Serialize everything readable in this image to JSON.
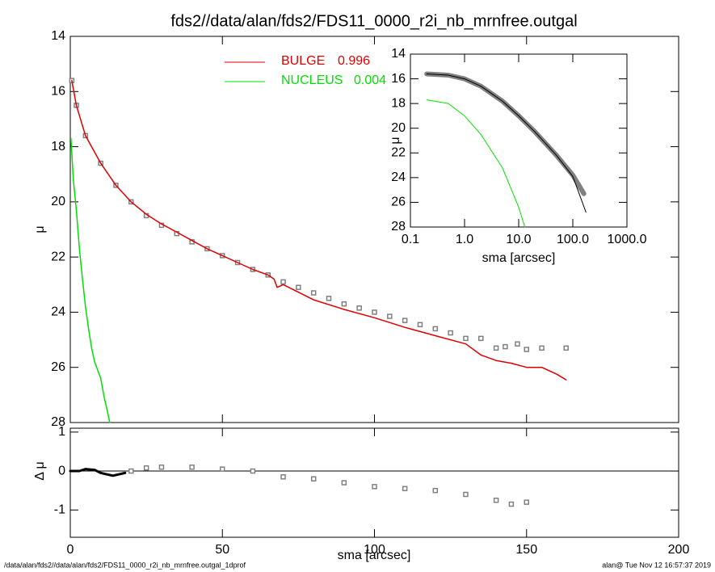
{
  "chart_data": [
    {
      "type": "line",
      "title": "fds2//data/alan/fds2/FDS11_0000_r2i_nb_mrnfree.outgal",
      "ylabel": "μ",
      "xlim": [
        0,
        200
      ],
      "ylim": [
        28,
        14
      ],
      "yticks": [
        14,
        16,
        18,
        20,
        22,
        24,
        26,
        28
      ],
      "series": [
        {
          "color": "#808080",
          "marker": "square",
          "x": [
            0.5,
            2,
            5,
            10,
            15,
            20,
            25,
            30,
            35,
            40,
            45,
            50,
            55,
            60,
            65,
            70,
            75,
            80,
            85,
            90,
            95,
            100,
            105,
            110,
            115,
            120,
            125,
            130,
            135,
            140,
            143,
            147,
            150,
            155,
            163
          ],
          "values": [
            15.6,
            16.5,
            17.6,
            18.6,
            19.4,
            20.0,
            20.5,
            20.85,
            21.15,
            21.45,
            21.7,
            21.95,
            22.2,
            22.45,
            22.65,
            22.9,
            23.1,
            23.3,
            23.5,
            23.7,
            23.85,
            24.0,
            24.15,
            24.3,
            24.45,
            24.6,
            24.75,
            24.95,
            24.95,
            25.3,
            25.25,
            25.15,
            25.35,
            25.3,
            25.3
          ]
        },
        {
          "name": "BULGE",
          "fraction": 0.996,
          "color": "#e00000",
          "x": [
            0.5,
            2,
            5,
            10,
            15,
            20,
            25,
            30,
            35,
            40,
            45,
            50,
            55,
            60,
            65,
            67,
            68,
            70,
            80,
            90,
            100,
            110,
            120,
            130,
            135,
            140,
            145,
            150,
            155,
            160,
            163
          ],
          "values": [
            15.6,
            16.5,
            17.6,
            18.6,
            19.4,
            20.0,
            20.45,
            20.8,
            21.1,
            21.4,
            21.7,
            21.95,
            22.2,
            22.45,
            22.65,
            22.8,
            23.1,
            23.0,
            23.55,
            23.9,
            24.2,
            24.55,
            24.85,
            25.15,
            25.55,
            25.75,
            25.85,
            26.0,
            26.0,
            26.25,
            26.45
          ]
        },
        {
          "name": "NUCLEUS",
          "fraction": 0.004,
          "color": "#00e000",
          "x": [
            0.2,
            1,
            2,
            3,
            4,
            5,
            6,
            7,
            8,
            10,
            11,
            12,
            13
          ],
          "values": [
            17.7,
            19.2,
            20.3,
            21.7,
            22.8,
            23.8,
            24.6,
            25.3,
            25.8,
            26.4,
            27.0,
            27.5,
            28.0
          ]
        }
      ]
    },
    {
      "type": "line",
      "xlabel": "sma [arcsec]",
      "ylabel": "Δ μ",
      "xlim": [
        0,
        200
      ],
      "xticks": [
        0,
        50,
        100,
        150,
        200
      ],
      "ylim": [
        -1.7,
        1.1
      ],
      "yticks": [
        -1,
        0,
        1
      ],
      "series": [
        {
          "color": "#808080",
          "marker": "square",
          "x": [
            20,
            25,
            30,
            40,
            50,
            60,
            70,
            80,
            90,
            100,
            110,
            120,
            130,
            140,
            145,
            150
          ],
          "values": [
            0,
            0.08,
            0.1,
            0.1,
            0.05,
            0.0,
            -0.15,
            -0.2,
            -0.3,
            -0.4,
            -0.45,
            -0.5,
            -0.6,
            -0.75,
            -0.85,
            -0.8
          ]
        },
        {
          "color": "#000000",
          "line_width": 3,
          "x": [
            0,
            3,
            5,
            8,
            10,
            14,
            18
          ],
          "values": [
            0,
            0,
            0.05,
            0.03,
            -0.05,
            -0.12,
            -0.05
          ]
        }
      ]
    },
    {
      "type": "line",
      "log_x": true,
      "xlabel": "sma [arcsec]",
      "ylabel": "μ",
      "xlim": [
        0.1,
        1000
      ],
      "xticks": [
        0.1,
        {
          "value": 1,
          "label": "1.0"
        },
        {
          "value": 10,
          "label": "10.0"
        },
        {
          "value": 100,
          "label": "100.0"
        },
        {
          "value": 1000,
          "label": "1000.0"
        }
      ],
      "ylim": [
        28,
        14
      ],
      "yticks": [
        14,
        16,
        18,
        20,
        22,
        24,
        26,
        28
      ],
      "series": [
        {
          "color": "#808080",
          "line_width": 6,
          "x": [
            0.2,
            0.5,
            1,
            2,
            5,
            10,
            20,
            50,
            100,
            160
          ],
          "values": [
            15.6,
            15.7,
            16.0,
            16.6,
            17.8,
            19.0,
            20.3,
            22.2,
            23.8,
            25.3
          ]
        },
        {
          "color": "#000000",
          "line_width": 1,
          "x": [
            0.2,
            0.5,
            1,
            2,
            5,
            10,
            20,
            50,
            100,
            175
          ],
          "values": [
            15.6,
            15.7,
            16.0,
            16.6,
            17.8,
            19.0,
            20.3,
            22.2,
            23.9,
            26.8
          ]
        },
        {
          "color": "#00e000",
          "line_width": 1,
          "x": [
            0.2,
            0.5,
            1,
            2,
            5,
            10,
            13
          ],
          "values": [
            17.7,
            18.0,
            19.0,
            20.5,
            23.2,
            26.4,
            28.0
          ]
        }
      ]
    }
  ],
  "footer": {
    "left": "/data/alan/fds2//data/alan/fds2/FDS11_0000_r2i_nb_mrnfree.outgal_1dprof",
    "right": "alan@  Tue Nov 12 16:57:37 2019"
  }
}
